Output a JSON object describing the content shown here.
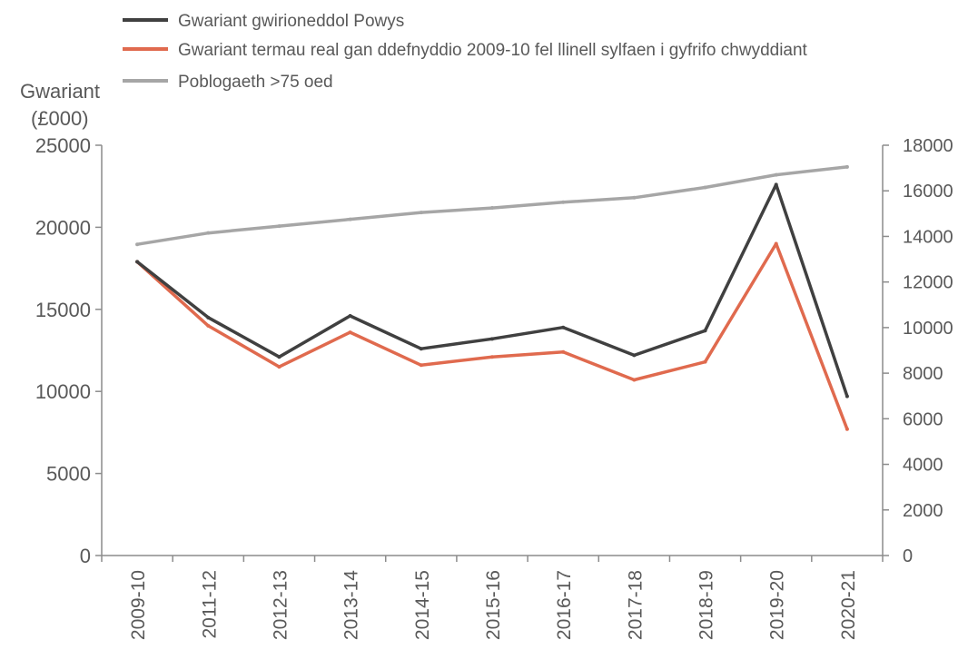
{
  "chart_data": {
    "type": "line",
    "title": "",
    "categories": [
      "2009-10",
      "2011-12",
      "2012-13",
      "2013-14",
      "2014-15",
      "2015-16",
      "2016-17",
      "2017-18",
      "2018-19",
      "2019-20",
      "2020-21"
    ],
    "y_left": {
      "label_line1": "Gwariant",
      "label_line2": "(£000)",
      "min": 0,
      "max": 25000,
      "ticks": [
        "0",
        "5000",
        "10000",
        "15000",
        "20000",
        "25000"
      ]
    },
    "y_right": {
      "min": 0,
      "max": 18000,
      "ticks": [
        "0",
        "2000",
        "4000",
        "6000",
        "8000",
        "10000",
        "12000",
        "14000",
        "16000",
        "18000"
      ]
    },
    "grid": false,
    "legend_position": "top-left",
    "series": [
      {
        "name": "Gwariant gwirioneddol Powys",
        "axis": "left",
        "color": "#404040",
        "values": [
          17900,
          14500,
          12100,
          14600,
          12600,
          13200,
          13900,
          12200,
          13700,
          22600,
          9700
        ]
      },
      {
        "name": "Gwariant termau real gan ddefnyddio 2009-10 fel llinell sylfaen i gyfrifo chwyddiant",
        "axis": "left",
        "color": "#E06A4E",
        "values": [
          17900,
          14000,
          11500,
          13600,
          11600,
          12100,
          12400,
          10700,
          11800,
          19000,
          7700
        ]
      },
      {
        "name": "Poblogaeth >75 oed",
        "axis": "right",
        "color": "#A6A6A6",
        "values": [
          13650,
          14150,
          14450,
          14750,
          15050,
          15250,
          15500,
          15700,
          16150,
          16700,
          17050
        ]
      }
    ]
  }
}
